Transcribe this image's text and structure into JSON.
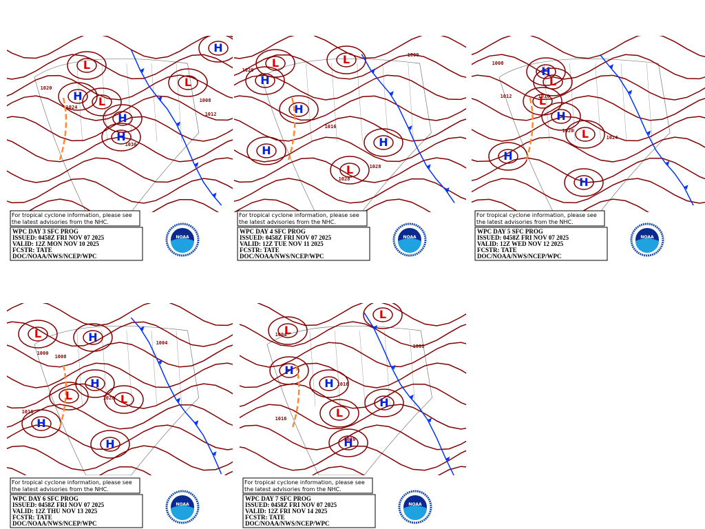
{
  "panels": [
    {
      "notice": [
        "For tropical cyclone information, please see",
        "the latest advisories from the NHC."
      ],
      "info": [
        "WPC DAY 3 SFC PROG",
        "ISSUED: 0458Z FRI NOV 07 2025",
        "VALID: 12Z MON NOV 10 2025",
        "FCSTR: TATE",
        "DOC/NOAA/NWS/NCEP/WPC"
      ],
      "logo": "NOAA",
      "pressure_labels": [
        "H",
        "H",
        "H",
        "L",
        "L",
        "L",
        "H",
        "1020",
        "1024",
        "1012",
        "1008",
        "1036"
      ]
    },
    {
      "notice": [
        "For tropical cyclone information, please see",
        "the latest advisories from the NHC."
      ],
      "info": [
        "WPC DAY 4 SFC PROG",
        "ISSUED: 0458Z FRI NOV 07 2025",
        "VALID: 12Z TUE NOV 11 2025",
        "FCSTR: TATE",
        "DOC/NOAA/NWS/NCEP/WPC"
      ],
      "logo": "NOAA",
      "pressure_labels": [
        "H",
        "H",
        "H",
        "L",
        "L",
        "L",
        "H",
        "1020",
        "1028",
        "1016",
        "1000",
        "1028"
      ]
    },
    {
      "notice": [
        "For tropical cyclone information, please see",
        "the latest advisories from the NHC."
      ],
      "info": [
        "WPC DAY 5 SFC PROG",
        "ISSUED: 0458Z FRI NOV 07 2025",
        "VALID: 12Z WED NOV 12 2025",
        "FCSTR: TATE",
        "DOC/NOAA/NWS/NCEP/WPC"
      ],
      "logo": "NOAA",
      "pressure_labels": [
        "H",
        "H",
        "H",
        "L",
        "L",
        "L",
        "H",
        "1012",
        "1008",
        "1016",
        "1020",
        "1024"
      ]
    },
    {
      "notice": [
        "For tropical cyclone information, please see",
        "the latest advisories from the NHC."
      ],
      "info": [
        "WPC DAY 6 SFC PROG",
        "ISSUED: 0458Z FRI NOV 07 2025",
        "VALID: 12Z THU NOV 13 2025",
        "FCSTR: TATE",
        "DOC/NOAA/NWS/NCEP/WPC"
      ],
      "logo": "NOAA",
      "pressure_labels": [
        "H",
        "H",
        "H",
        "L",
        "L",
        "L",
        "H",
        "1000",
        "1008",
        "1020",
        "1016",
        "1004"
      ]
    },
    {
      "notice": [
        "For tropical cyclone information, please see",
        "the latest advisories from the NHC."
      ],
      "info": [
        "WPC DAY 7 SFC PROG",
        "ISSUED: 0458Z FRI NOV 07 2025",
        "VALID: 12Z FRI NOV 14 2025",
        "FCSTR: TATE",
        "DOC/NOAA/NWS/NCEP/WPC"
      ],
      "logo": "NOAA",
      "pressure_labels": [
        "H",
        "H",
        "H",
        "L",
        "L",
        "L",
        "H",
        "1004",
        "1016",
        "1016",
        "1008",
        "1020"
      ]
    }
  ]
}
